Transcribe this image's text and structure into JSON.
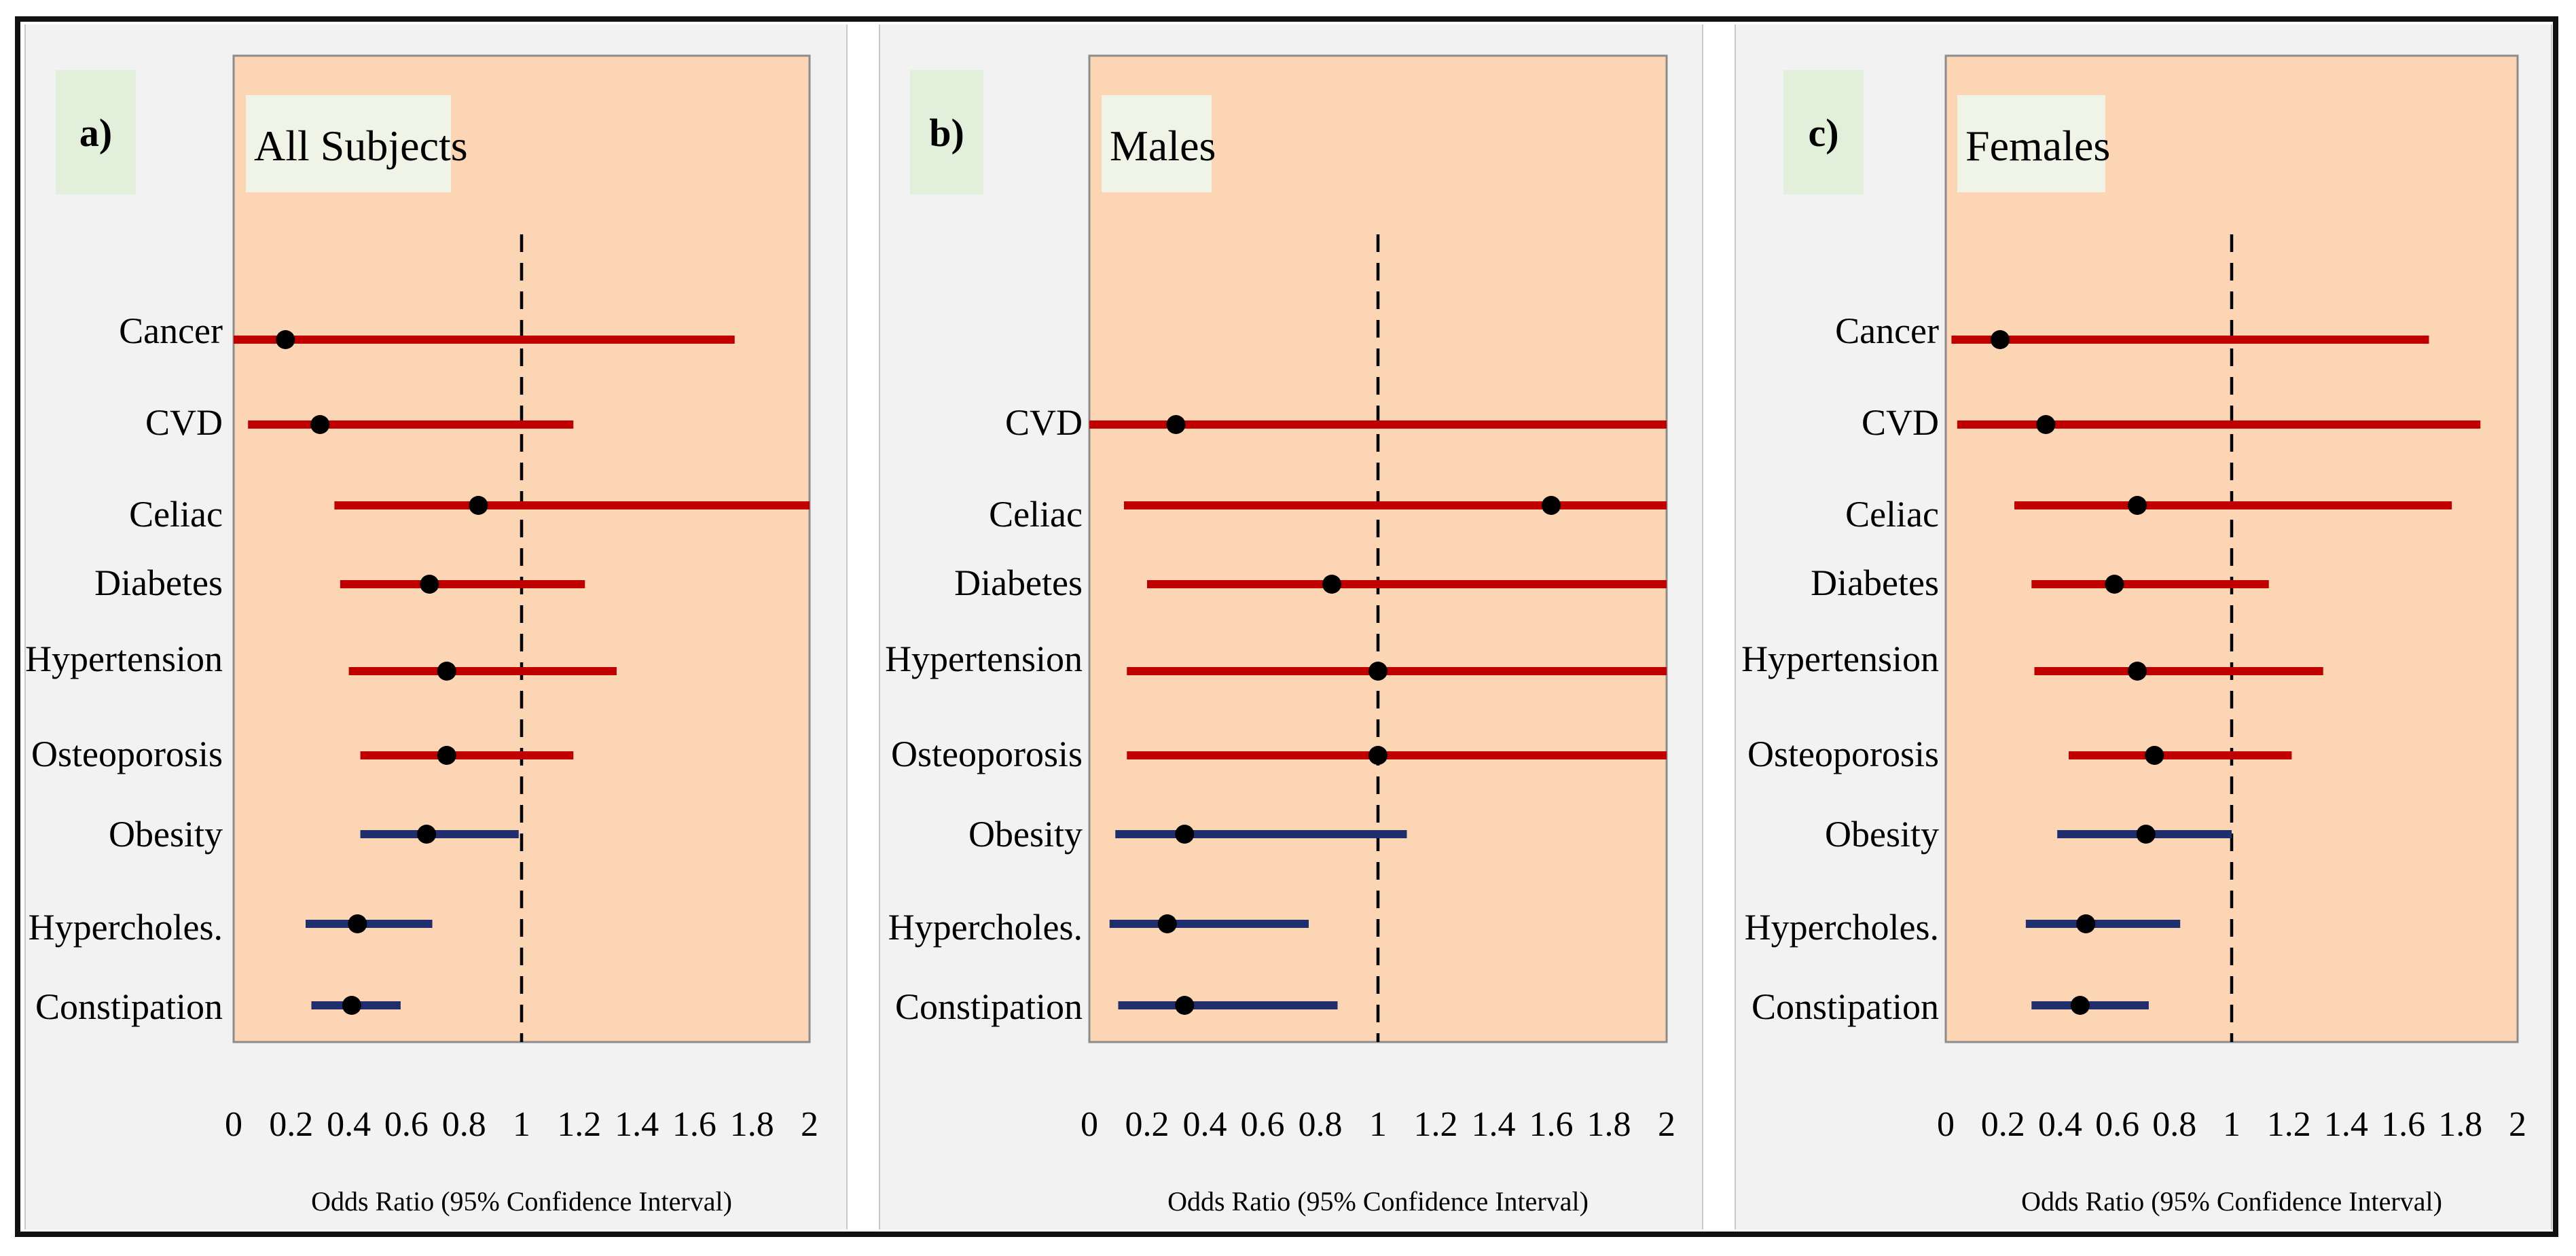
{
  "chart_data": [
    {
      "type": "forest",
      "panel_label": "a)",
      "title": "All Subjects",
      "xlabel": "Odds Ratio (95% Confidence Interval)",
      "xlim": [
        0,
        2
      ],
      "xticks": [
        "0",
        "0.2",
        "0.4",
        "0.6",
        "0.8",
        "1",
        "1.2",
        "1.4",
        "1.6",
        "1.8",
        "2"
      ],
      "reference_line": 1,
      "colors": {
        "background": "#fcd5b5",
        "red": "#c00000",
        "blue": "#1f2f6e",
        "point": "#000000"
      },
      "rows": [
        {
          "label": "Cancer",
          "or": 0.18,
          "lo": 0.0,
          "hi": 1.74,
          "color": "red"
        },
        {
          "label": "CVD",
          "or": 0.3,
          "lo": 0.05,
          "hi": 1.18,
          "color": "red"
        },
        {
          "label": "Celiac",
          "or": 0.85,
          "lo": 0.35,
          "hi": 2.0,
          "color": "red"
        },
        {
          "label": "Diabetes",
          "or": 0.68,
          "lo": 0.37,
          "hi": 1.22,
          "color": "red"
        },
        {
          "label": "Hypertension",
          "or": 0.74,
          "lo": 0.4,
          "hi": 1.33,
          "color": "red"
        },
        {
          "label": "Osteoporosis",
          "or": 0.74,
          "lo": 0.44,
          "hi": 1.18,
          "color": "red"
        },
        {
          "label": "Obesity",
          "or": 0.67,
          "lo": 0.44,
          "hi": 0.99,
          "color": "blue"
        },
        {
          "label": "Hypercholes.",
          "or": 0.43,
          "lo": 0.25,
          "hi": 0.69,
          "color": "blue"
        },
        {
          "label": "Constipation",
          "or": 0.41,
          "lo": 0.27,
          "hi": 0.58,
          "color": "blue"
        }
      ]
    },
    {
      "type": "forest",
      "panel_label": "b)",
      "title": "Males",
      "xlabel": "Odds Ratio (95% Confidence Interval)",
      "xlim": [
        0,
        2
      ],
      "xticks": [
        "0",
        "0.2",
        "0.4",
        "0.6",
        "0.8",
        "1",
        "1.2",
        "1.4",
        "1.6",
        "1.8",
        "2"
      ],
      "reference_line": 1,
      "colors": {
        "background": "#fcd5b5",
        "red": "#c00000",
        "blue": "#1f2f6e",
        "point": "#000000"
      },
      "rows": [
        {
          "label": "CVD",
          "or": 0.3,
          "lo": 0.0,
          "hi": 2.0,
          "color": "red"
        },
        {
          "label": "Celiac",
          "or": 1.6,
          "lo": 0.12,
          "hi": 2.0,
          "color": "red"
        },
        {
          "label": "Diabetes",
          "or": 0.84,
          "lo": 0.2,
          "hi": 2.0,
          "color": "red"
        },
        {
          "label": "Hypertension",
          "or": 1.0,
          "lo": 0.13,
          "hi": 2.0,
          "color": "red"
        },
        {
          "label": "Osteoporosis",
          "or": 1.0,
          "lo": 0.13,
          "hi": 2.0,
          "color": "red"
        },
        {
          "label": "Obesity",
          "or": 0.33,
          "lo": 0.09,
          "hi": 1.1,
          "color": "blue"
        },
        {
          "label": "Hypercholes.",
          "or": 0.27,
          "lo": 0.07,
          "hi": 0.76,
          "color": "blue"
        },
        {
          "label": "Constipation",
          "or": 0.33,
          "lo": 0.1,
          "hi": 0.86,
          "color": "blue"
        }
      ]
    },
    {
      "type": "forest",
      "panel_label": "c)",
      "title": "Females",
      "xlabel": "Odds Ratio (95% Confidence Interval)",
      "xlim": [
        0,
        2
      ],
      "xticks": [
        "0",
        "0.2",
        "0.4",
        "0.6",
        "0.8",
        "1",
        "1.2",
        "1.4",
        "1.6",
        "1.8",
        "2"
      ],
      "reference_line": 1,
      "colors": {
        "background": "#fcd5b5",
        "red": "#c00000",
        "blue": "#1f2f6e",
        "point": "#000000"
      },
      "rows": [
        {
          "label": "Cancer",
          "or": 0.19,
          "lo": 0.02,
          "hi": 1.69,
          "color": "red"
        },
        {
          "label": "CVD",
          "or": 0.35,
          "lo": 0.04,
          "hi": 1.87,
          "color": "red"
        },
        {
          "label": "Celiac",
          "or": 0.67,
          "lo": 0.24,
          "hi": 1.77,
          "color": "red"
        },
        {
          "label": "Diabetes",
          "or": 0.59,
          "lo": 0.3,
          "hi": 1.13,
          "color": "red"
        },
        {
          "label": "Hypertension",
          "or": 0.67,
          "lo": 0.31,
          "hi": 1.32,
          "color": "red"
        },
        {
          "label": "Osteoporosis",
          "or": 0.73,
          "lo": 0.43,
          "hi": 1.21,
          "color": "red"
        },
        {
          "label": "Obesity",
          "or": 0.7,
          "lo": 0.39,
          "hi": 1.0,
          "color": "blue"
        },
        {
          "label": "Hypercholes.",
          "or": 0.49,
          "lo": 0.28,
          "hi": 0.82,
          "color": "blue"
        },
        {
          "label": "Constipation",
          "or": 0.47,
          "lo": 0.3,
          "hi": 0.71,
          "color": "blue"
        }
      ]
    }
  ]
}
